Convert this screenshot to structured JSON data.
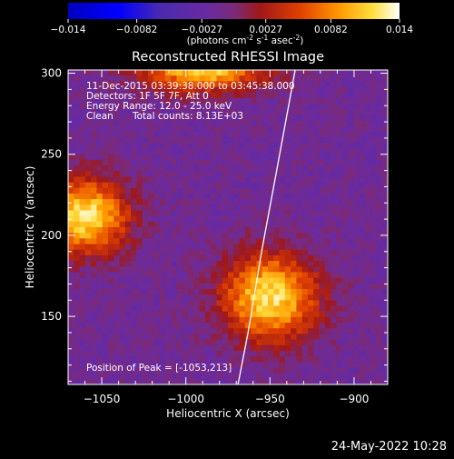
{
  "colorbar": {
    "ticks": [
      "-0.014",
      "-0.0082",
      "-0.0027",
      "0.0027",
      "0.0082",
      "0.014"
    ],
    "units_pre": "(photons cm",
    "units_sup1": "-2",
    "units_mid": " s",
    "units_sup2": "-1",
    "units_mid2": " asec",
    "units_sup3": "-2",
    "units_post": ")"
  },
  "chart_data": {
    "type": "heatmap",
    "title": "Reconstructed RHESSI Image",
    "xlabel": "Heliocentric X (arcsec)",
    "ylabel": "Heliocentric Y (arcsec)",
    "xlim": [
      -1070,
      -880
    ],
    "ylim": [
      108,
      302
    ],
    "x_ticks": [
      -1050,
      -1000,
      -950,
      -900
    ],
    "y_ticks": [
      150,
      200,
      250,
      300
    ],
    "x_tick_labels": [
      "−1050",
      "−1000",
      "−950",
      "−900"
    ],
    "y_tick_labels": [
      "150",
      "200",
      "250",
      "300"
    ],
    "zlim": [
      -0.014,
      0.014
    ],
    "grid": false,
    "sources": [
      {
        "x": -1060,
        "y": 212,
        "peak": 0.014,
        "sx": 18,
        "sy": 16
      },
      {
        "x": -950,
        "y": 162,
        "peak": 0.0135,
        "sx": 20,
        "sy": 19
      },
      {
        "x": -990,
        "y": 303,
        "peak": 0.013,
        "sx": 26,
        "sy": 10
      }
    ],
    "limb_curve": [
      [
        -969,
        108
      ],
      [
        -963,
        140
      ],
      [
        -955,
        190
      ],
      [
        -946,
        240
      ],
      [
        -935,
        302
      ]
    ],
    "annotations": [
      "11-Dec-2015 03:39:38.000 to 03:45:38.000",
      "Detectors: 1F 5F 7F, Att 0",
      "Energy Range: 12.0 - 25.0 keV",
      "Clean",
      "Total counts: 8.13E+03",
      "Position of Peak = [-1053,213]"
    ]
  },
  "footer": {
    "date": "24-May-2022 10:28"
  }
}
